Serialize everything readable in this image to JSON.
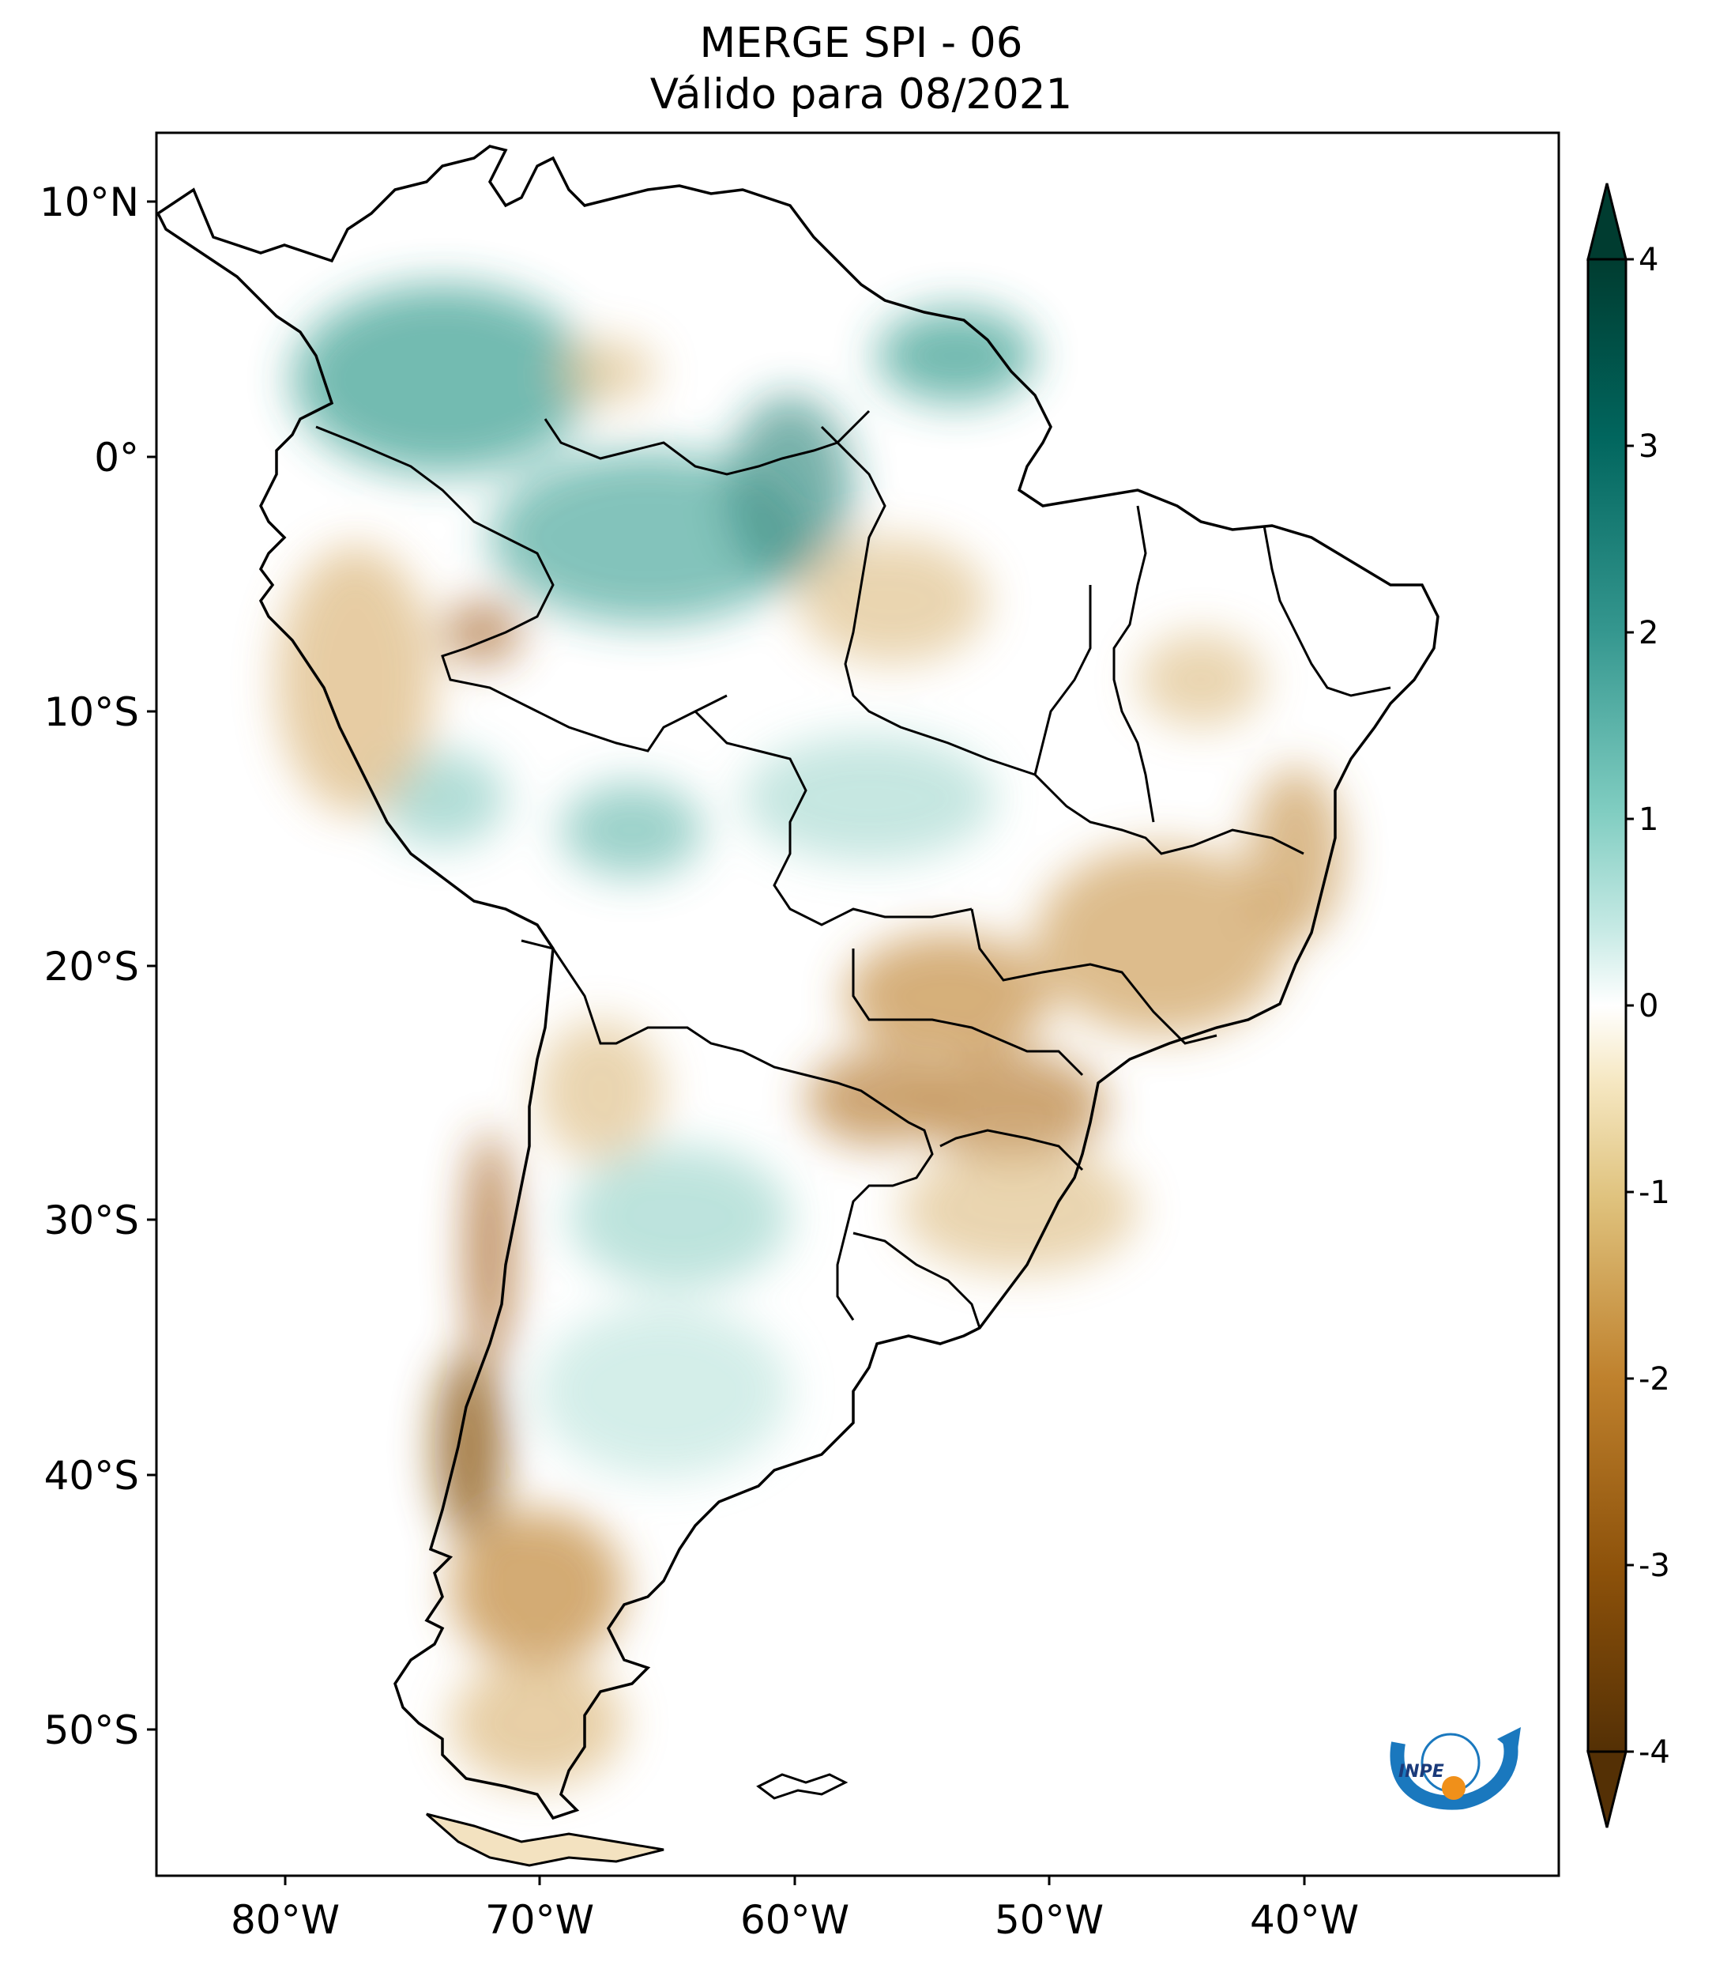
{
  "title": {
    "line1": "MERGE   SPI - 06",
    "line2": "Válido para 08/2021"
  },
  "map": {
    "lon_range": [
      -85,
      -30
    ],
    "lat_range": [
      -57,
      13
    ],
    "lat_ticks": [
      "10°N",
      "0°",
      "10°S",
      "20°S",
      "30°S",
      "40°S",
      "50°S"
    ],
    "lon_ticks": [
      "80°W",
      "70°W",
      "60°W",
      "50°W",
      "40°W"
    ],
    "colors": {
      "wet_strong": "#0a5f55",
      "wet": "#2e9a8c",
      "wet_light": "#9ed6cc",
      "neutral": "#ffffff",
      "dry_light": "#ecd3a0",
      "dry": "#c28a3c",
      "dry_strong": "#8a5412",
      "border": "#000000"
    }
  },
  "colorbar": {
    "ticks": [
      "4",
      "3",
      "2",
      "1",
      "0",
      "-1",
      "-2",
      "-3",
      "-4"
    ],
    "min": -4,
    "max": 4,
    "colormap": "BrBG"
  },
  "logo": {
    "text": "INPE",
    "icon": "inpe-logo-icon"
  }
}
